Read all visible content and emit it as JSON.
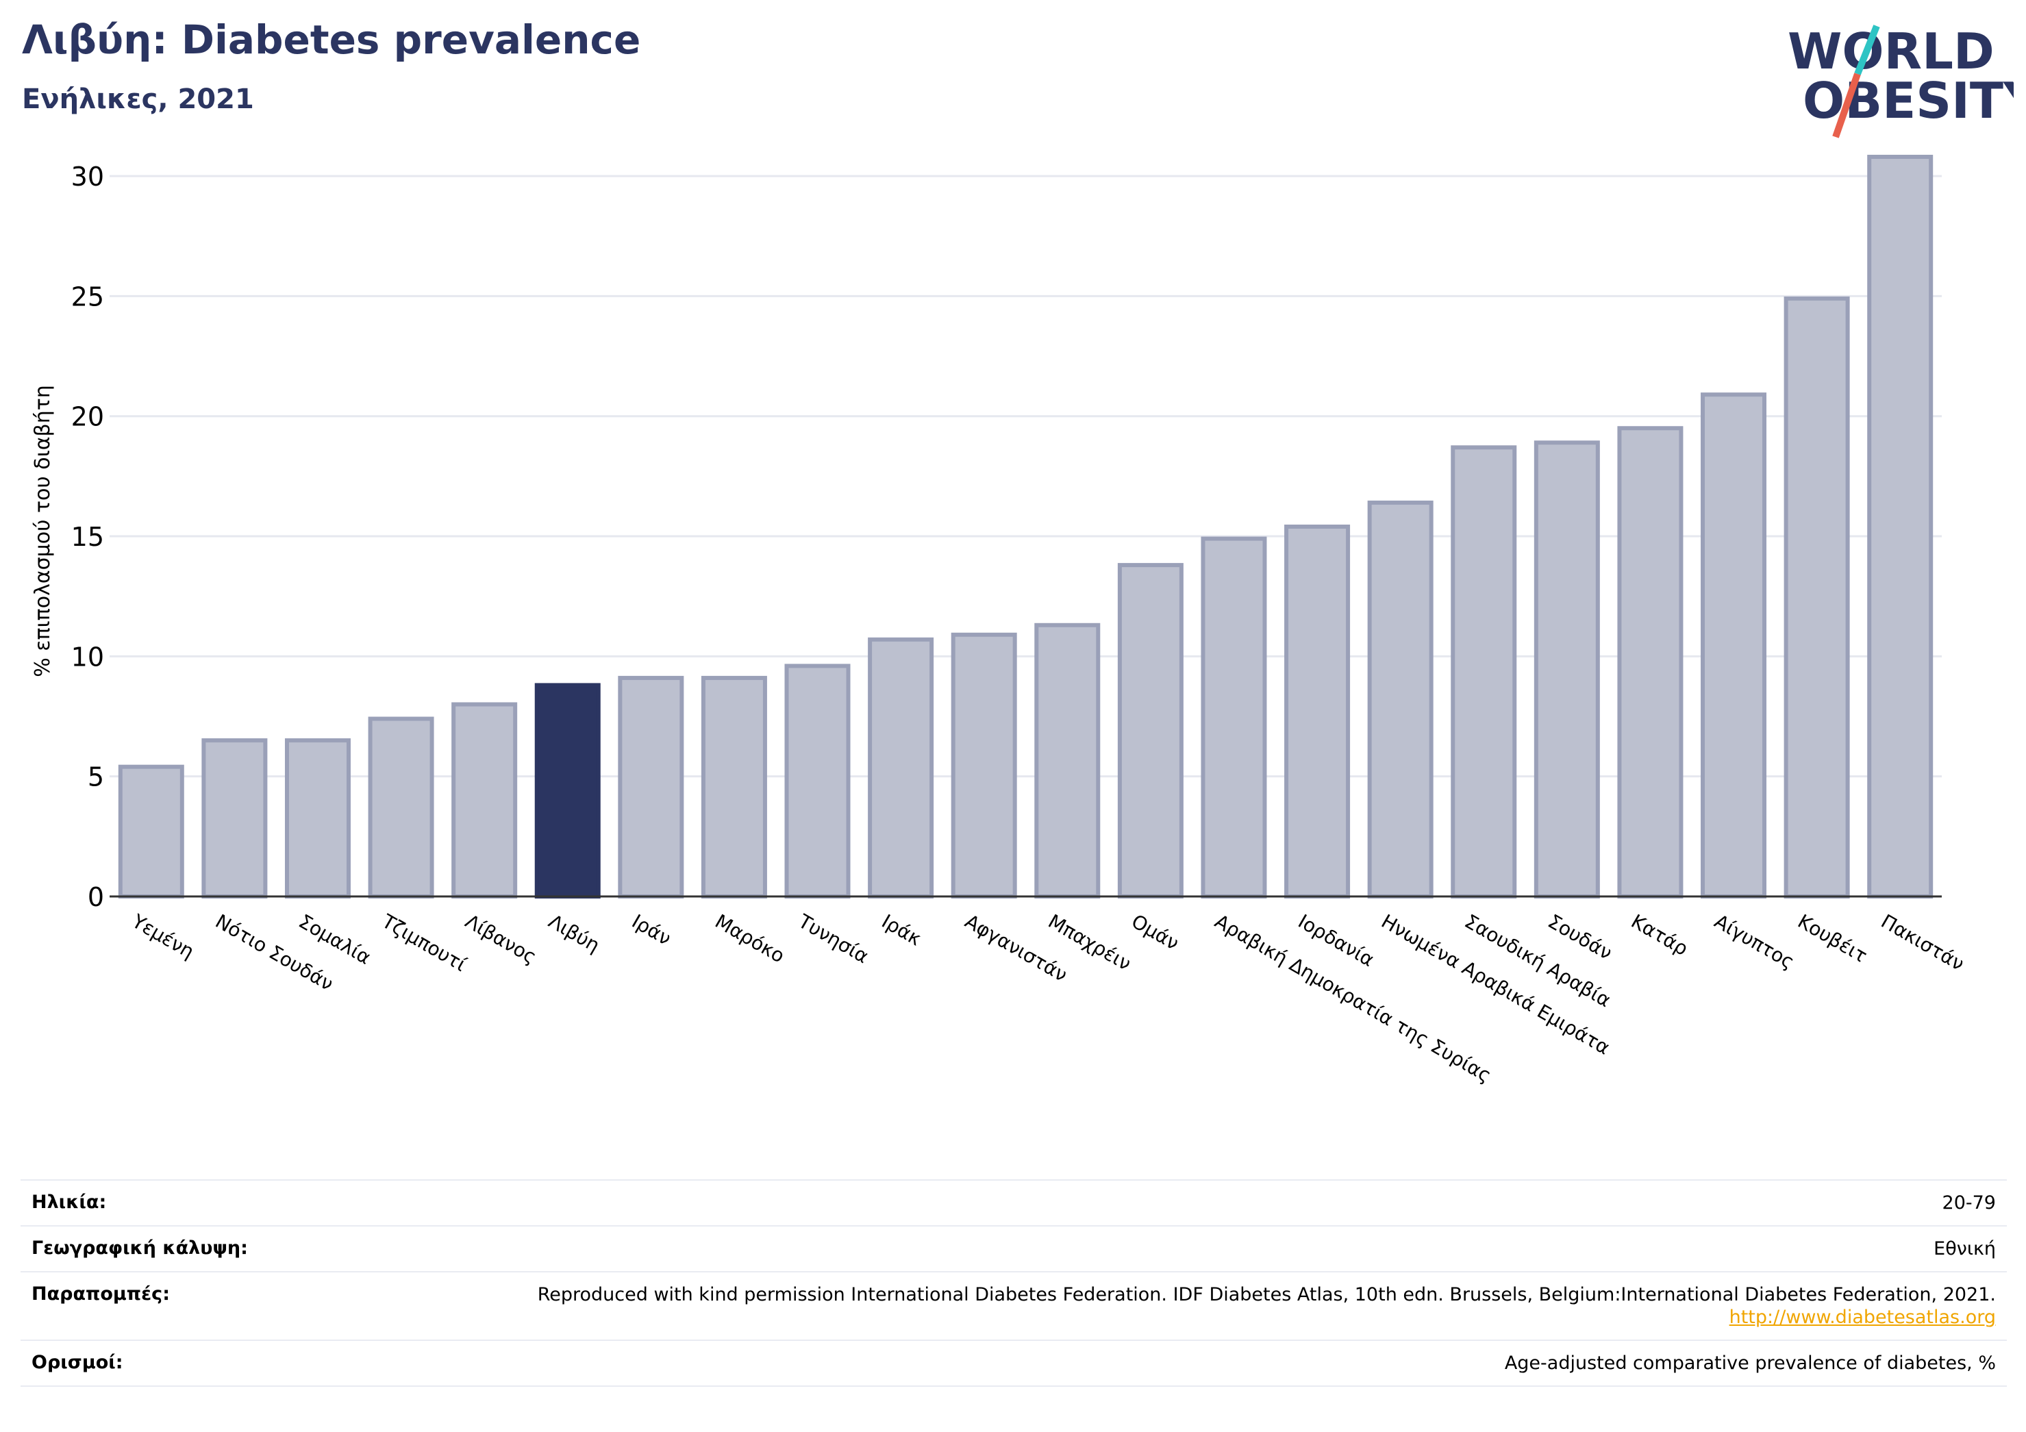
{
  "header": {
    "title": "Λιβύη: Diabetes prevalence",
    "subtitle": "Ενήλικες, 2021"
  },
  "logo": {
    "line1": "WORLD",
    "line2": "OBESITY",
    "colors": {
      "text": "#2b3561",
      "slash_top": "#2ec4c4",
      "slash_bottom": "#e8604c"
    }
  },
  "colors": {
    "bar": "#bcc0cf",
    "bar_border": "#9aa0b8",
    "highlight": "#2b3561",
    "grid": "#e6e8ef"
  },
  "chart_data": {
    "type": "bar",
    "title": "",
    "ylabel": "% επιπολασμού του διαβήτη",
    "xlabel": "",
    "ylim": [
      0,
      31
    ],
    "yticks": [
      0,
      5,
      10,
      15,
      20,
      25,
      30
    ],
    "grid": true,
    "highlight_category": "Λιβύη",
    "categories": [
      "Υεμένη",
      "Νότιο Σουδάν",
      "Σομαλία",
      "Τζιμπουτί",
      "Λίβανος",
      "Λιβύη",
      "Ιράν",
      "Μαρόκο",
      "Τυνησία",
      "Ιράκ",
      "Αφγανιστάν",
      "Μπαχρέιν",
      "Ομάν",
      "Αραβική Δημοκρατία της Συρίας",
      "Ιορδανία",
      "Ηνωμένα Αραβικά Εμιράτα",
      "Σαουδική Αραβία",
      "Σουδάν",
      "Κατάρ",
      "Αίγυπτος",
      "Κουβέιτ",
      "Πακιστάν"
    ],
    "values": [
      5.4,
      6.5,
      6.5,
      7.4,
      8.0,
      8.8,
      9.1,
      9.1,
      9.6,
      10.7,
      10.9,
      11.3,
      13.8,
      14.9,
      15.4,
      16.4,
      18.7,
      18.9,
      19.5,
      20.9,
      24.9,
      30.8
    ]
  },
  "info": {
    "rows": [
      {
        "label": "Ηλικία:",
        "value": "20-79"
      },
      {
        "label": "Γεωγραφική κάλυψη:",
        "value": "Εθνική"
      },
      {
        "label": "Παραπομπές:",
        "value": "Reproduced with kind permission International Diabetes Federation.  IDF Diabetes Atlas, 10th edn. Brussels, Belgium:International Diabetes Federation, 2021. ",
        "link": "http://www.diabetesatlas.org"
      },
      {
        "label": "Ορισμοί:",
        "value": "Age-adjusted comparative prevalence of diabetes, %"
      }
    ]
  }
}
